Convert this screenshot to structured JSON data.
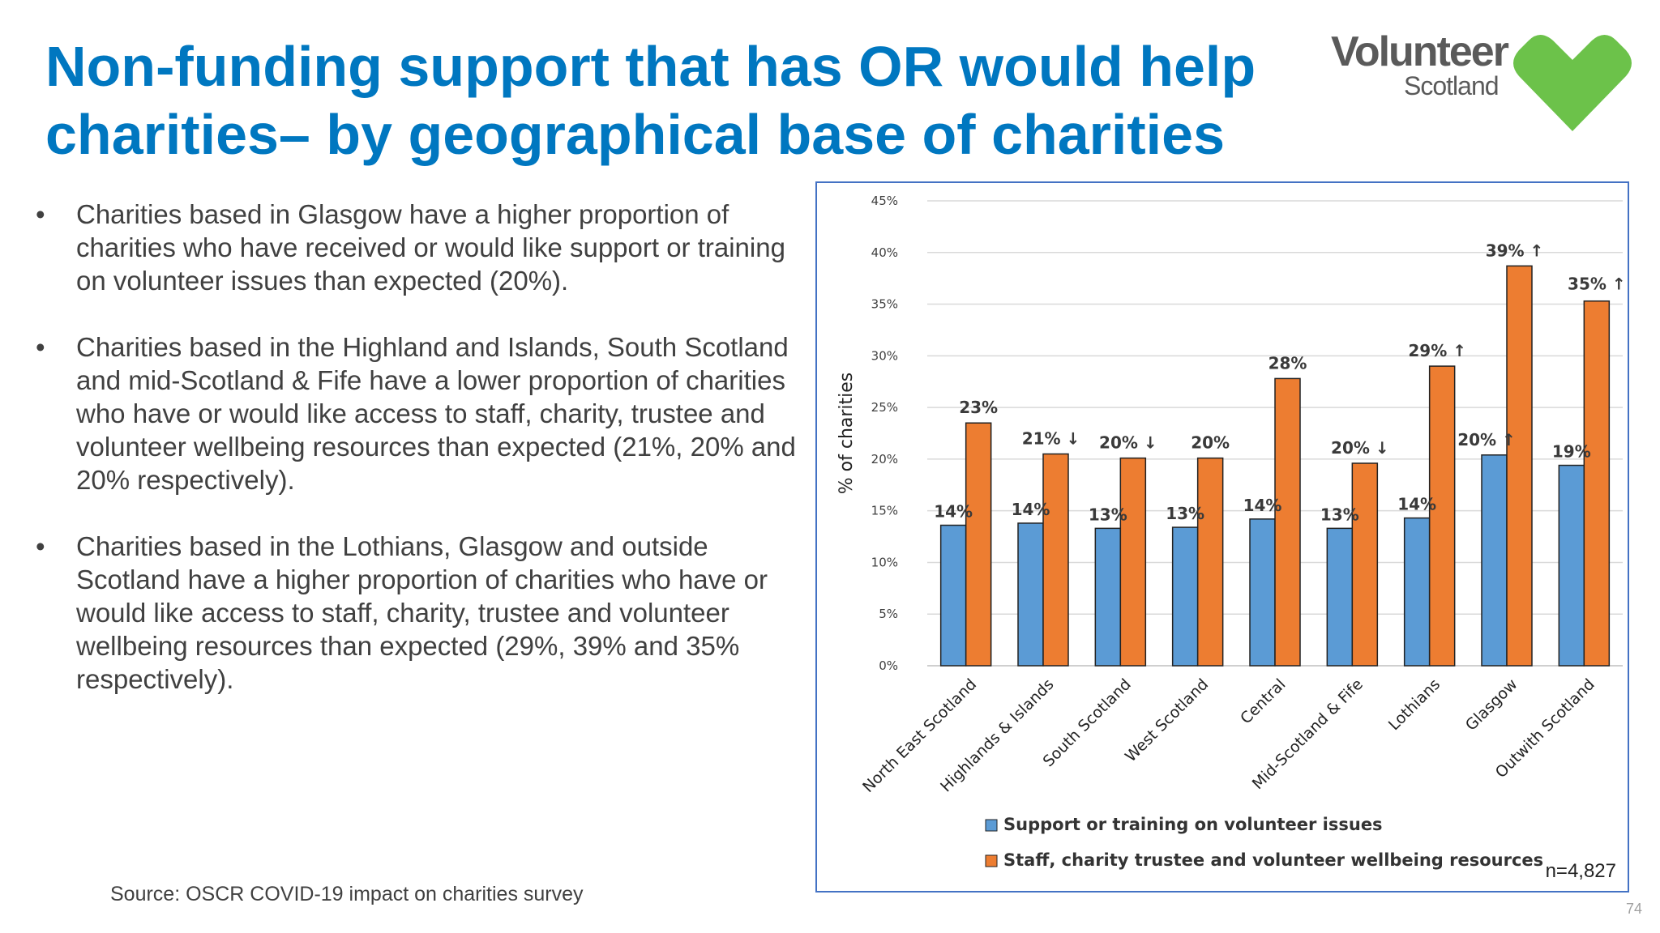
{
  "slide": {
    "title_line1": "Non-funding support that has OR would help",
    "title_line2": "charities– by geographical base of charities",
    "logo_main": "Volunteer",
    "logo_sub": "Scotland",
    "source": "Source: OSCR COVID-19 impact on charities survey",
    "page_number": "74",
    "n_label": "n=4,827",
    "bullets": [
      "Charities based in Glasgow have a higher proportion of charities who have received or would like support or training on volunteer issues than expected (20%).",
      "Charities based in the Highland and Islands, South Scotland and mid-Scotland & Fife have a lower proportion of charities who have or would like access to staff, charity, trustee and volunteer wellbeing resources than expected (21%, 20% and 20% respectively).",
      "Charities based in the Lothians, Glasgow and outside Scotland have a higher proportion of charities who have or would like access to staff, charity, trustee and volunteer wellbeing resources than expected (29%, 39% and 35% respectively)."
    ],
    "bullet_symbol": "•",
    "colors": {
      "title": "#0077c0",
      "logo_green": "#6cc24a",
      "logo_text": "#5a5a5a",
      "border": "#4472c4"
    }
  },
  "chart_data": {
    "type": "bar",
    "title": "",
    "xlabel": "",
    "ylabel": "% of charities",
    "ylim": [
      0,
      45
    ],
    "yticks": [
      0,
      5,
      10,
      15,
      20,
      25,
      30,
      35,
      40,
      45
    ],
    "ytick_labels": [
      "0%",
      "5%",
      "10%",
      "15%",
      "20%",
      "25%",
      "30%",
      "35%",
      "40%",
      "45%"
    ],
    "categories": [
      "North East Scotland",
      "Highlands & Islands",
      "South Scotland",
      "West Scotland",
      "Central",
      "Mid-Scotland & Fife",
      "Lothians",
      "Glasgow",
      "Outwith Scotland"
    ],
    "series": [
      {
        "name": "Support or training on volunteer issues",
        "color": "#5b9bd5",
        "values": [
          13.6,
          13.8,
          13.3,
          13.4,
          14.2,
          13.3,
          14.3,
          20.4,
          19.4
        ],
        "labels": [
          "14%",
          "14%",
          "13%",
          "13%",
          "14%",
          "13%",
          "14%",
          "20%",
          "19%"
        ],
        "arrows": [
          "",
          "",
          "",
          "",
          "",
          "",
          "",
          "↑",
          ""
        ]
      },
      {
        "name": "Staff, charity trustee and volunteer wellbeing resources",
        "color": "#ed7d31",
        "values": [
          23.5,
          20.5,
          20.1,
          20.1,
          27.8,
          19.6,
          29.0,
          38.7,
          35.3
        ],
        "labels": [
          "23%",
          "21%",
          "20%",
          "20%",
          "28%",
          "20%",
          "29%",
          "39%",
          "35%"
        ],
        "arrows": [
          "",
          "↓",
          "↓",
          "",
          "",
          "↓",
          "↑",
          "↑",
          "↑"
        ]
      }
    ],
    "legend_position": "bottom"
  }
}
